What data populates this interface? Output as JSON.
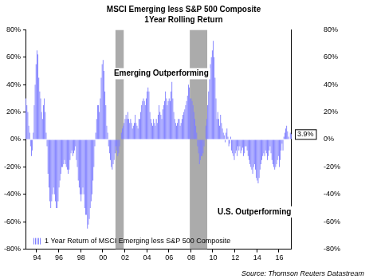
{
  "chart_data": {
    "type": "bar",
    "title": "MSCI Emerging less S&P 500 Composite",
    "subtitle": "1Year Rolling Return",
    "categories": [
      null,
      null,
      null,
      null,
      null,
      null,
      null,
      null,
      null,
      null,
      null,
      null,
      "94",
      null,
      null,
      null,
      null,
      null,
      null,
      null,
      null,
      null,
      null,
      null,
      null,
      null,
      null,
      null,
      null,
      null,
      null,
      null,
      null,
      null,
      null,
      null,
      "96",
      null,
      null,
      null,
      null,
      null,
      null,
      null,
      null,
      null,
      null,
      null,
      null,
      null,
      null,
      null,
      null,
      null,
      null,
      null,
      null,
      null,
      null,
      null,
      "98",
      null,
      null,
      null,
      null,
      null,
      null,
      null,
      null,
      null,
      null,
      null,
      null,
      null,
      null,
      null,
      null,
      null,
      null,
      null,
      null,
      null,
      null,
      null,
      "00",
      null,
      null,
      null,
      null,
      null,
      null,
      null,
      null,
      null,
      null,
      null,
      null,
      null,
      null,
      null,
      null,
      null,
      null,
      null,
      null,
      null,
      null,
      null,
      "02",
      null,
      null,
      null,
      null,
      null,
      null,
      null,
      null,
      null,
      null,
      null,
      null,
      null,
      null,
      null,
      null,
      null,
      null,
      null,
      null,
      null,
      null,
      null,
      "04",
      null,
      null,
      null,
      null,
      null,
      null,
      null,
      null,
      null,
      null,
      null,
      null,
      null,
      null,
      null,
      null,
      null,
      null,
      null,
      null,
      null,
      null,
      null,
      "06",
      null,
      null,
      null,
      null,
      null,
      null,
      null,
      null,
      null,
      null,
      null,
      null,
      null,
      null,
      null,
      null,
      null,
      null,
      null,
      null,
      null,
      null,
      null,
      "08",
      null,
      null,
      null,
      null,
      null,
      null,
      null,
      null,
      null,
      null,
      null,
      null,
      null,
      null,
      null,
      null,
      null,
      null,
      null,
      null,
      null,
      null,
      null,
      "10",
      null,
      null,
      null,
      null,
      null,
      null,
      null,
      null,
      null,
      null,
      null,
      null,
      null,
      null,
      null,
      null,
      null,
      null,
      null,
      null,
      null,
      null,
      null,
      "12",
      null,
      null,
      null,
      null,
      null,
      null,
      null,
      null,
      null,
      null,
      null,
      null,
      null,
      null,
      null,
      null,
      null,
      null,
      null,
      null,
      null,
      null,
      null,
      "14",
      null,
      null,
      null,
      null,
      null,
      null,
      null,
      null,
      null,
      null,
      null,
      null,
      null,
      null,
      null,
      null,
      null,
      null,
      null,
      null,
      null,
      null,
      null,
      "16",
      null,
      null,
      null,
      null,
      null,
      null,
      null,
      null,
      null,
      null,
      null,
      null,
      null
    ],
    "series": [
      {
        "name": "1 Year Return of MSCI Emerging less S&P 500 Composite",
        "color": "#7f7fff",
        "values": [
          30,
          25,
          20,
          10,
          5,
          -5,
          -12,
          -8,
          5,
          25,
          40,
          55,
          65,
          62,
          45,
          35,
          30,
          20,
          15,
          25,
          30,
          20,
          5,
          -5,
          -25,
          -35,
          -45,
          -50,
          -45,
          -40,
          -35,
          -40,
          -45,
          -50,
          -50,
          -45,
          -35,
          -30,
          -25,
          -20,
          -20,
          -18,
          -15,
          -18,
          -20,
          -22,
          -25,
          -22,
          -15,
          -10,
          -8,
          -12,
          -10,
          -8,
          -5,
          -15,
          -20,
          -30,
          -35,
          -40,
          -45,
          -40,
          -35,
          -40,
          -50,
          -55,
          -55,
          -65,
          -62,
          -58,
          -50,
          -45,
          -40,
          -30,
          -20,
          -5,
          5,
          15,
          25,
          25,
          20,
          30,
          45,
          55,
          58,
          50,
          35,
          25,
          10,
          5,
          -5,
          -10,
          -15,
          -20,
          -22,
          -18,
          -15,
          -10,
          -5,
          -8,
          -12,
          -10,
          -5,
          0,
          5,
          8,
          10,
          12,
          15,
          18,
          15,
          20,
          15,
          12,
          15,
          12,
          8,
          10,
          12,
          18,
          12,
          10,
          8,
          15,
          15,
          20,
          25,
          28,
          30,
          28,
          25,
          30,
          35,
          38,
          35,
          20,
          15,
          12,
          10,
          15,
          12,
          10,
          15,
          12,
          18,
          25,
          20,
          18,
          15,
          22,
          25,
          28,
          35,
          30,
          25,
          28,
          30,
          28,
          35,
          42,
          30,
          20,
          15,
          12,
          10,
          12,
          15,
          15,
          10,
          12,
          15,
          18,
          20,
          22,
          25,
          28,
          32,
          40,
          38,
          30,
          30,
          28,
          25,
          20,
          15,
          10,
          5,
          -5,
          -10,
          -18,
          -15,
          -12,
          -12,
          -10,
          -5,
          0,
          10,
          15,
          25,
          35,
          45,
          55,
          60,
          65,
          72,
          60,
          45,
          30,
          15,
          20,
          15,
          10,
          18,
          12,
          8,
          5,
          3,
          -2,
          5,
          8,
          2,
          -5,
          -3,
          2,
          -8,
          -10,
          -12,
          -15,
          -10,
          -8,
          -12,
          -5,
          -8,
          -5,
          -10,
          -8,
          -6,
          -12,
          -10,
          -5,
          -5,
          -8,
          -12,
          -15,
          -18,
          -20,
          -22,
          -25,
          -20,
          -18,
          -22,
          -28,
          -30,
          -32,
          -28,
          -22,
          -18,
          -15,
          -12,
          -10,
          -12,
          -8,
          -10,
          -15,
          -12,
          -8,
          -5,
          -10,
          -15,
          -18,
          -20,
          -22,
          -20,
          -18,
          -15,
          -12,
          -20,
          -15,
          -8,
          -3,
          -8,
          2,
          5,
          8,
          10,
          6,
          2,
          0,
          5,
          3.9
        ]
      }
    ],
    "ylim": [
      -80,
      80
    ],
    "yticks": [
      {
        "value": -80,
        "label": "-80%"
      },
      {
        "value": -60,
        "label": "-60%"
      },
      {
        "value": -40,
        "label": "-40%"
      },
      {
        "value": -20,
        "label": "-20%"
      },
      {
        "value": 0,
        "label": "0%"
      },
      {
        "value": 20,
        "label": "20%"
      },
      {
        "value": 40,
        "label": "40%"
      },
      {
        "value": 60,
        "label": "60%"
      },
      {
        "value": 80,
        "label": "80%"
      }
    ],
    "y2lim": [
      -80,
      80
    ],
    "y2ticks": [
      {
        "value": -80,
        "label": "-80%"
      },
      {
        "value": -60,
        "label": "-60%"
      },
      {
        "value": -40,
        "label": "-40%"
      },
      {
        "value": -20,
        "label": "-20%"
      },
      {
        "value": 0,
        "label": "0%"
      },
      {
        "value": 20,
        "label": "20%"
      },
      {
        "value": 40,
        "label": "40%"
      },
      {
        "value": 60,
        "label": "60%"
      },
      {
        "value": 80,
        "label": "80%"
      }
    ],
    "shaded_periods": [
      {
        "start": 98,
        "end": 106
      },
      {
        "start": 179,
        "end": 197
      }
    ],
    "annotations": [
      {
        "text": "Emerging Outperforming"
      },
      {
        "text": "U.S. Outperforming"
      },
      {
        "text": "3.9%",
        "value": 3.9
      }
    ],
    "source": "Source: Thomson Reuters Datastream",
    "grid": false,
    "legend": "lower left"
  }
}
